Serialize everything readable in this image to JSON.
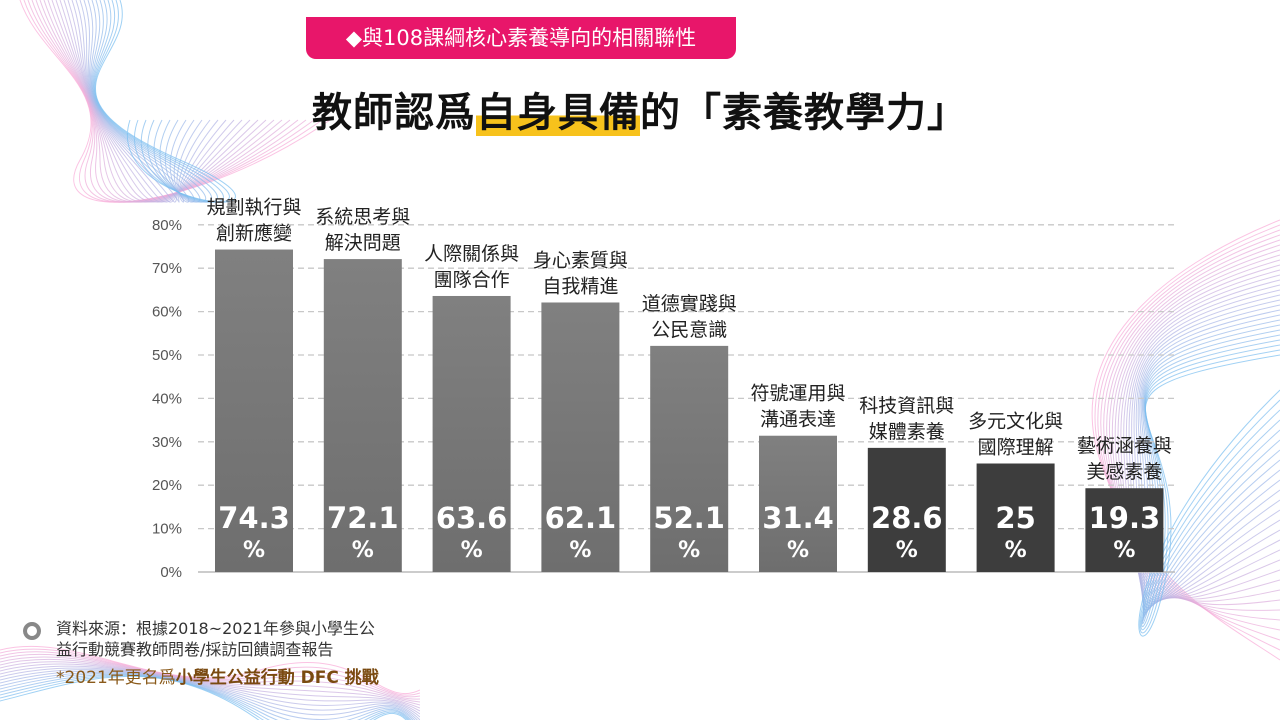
{
  "header": {
    "tag": "◆與108課綱核心素養導向的相關聯性",
    "title_pre": "教師認爲",
    "title_highlight": "自身具備",
    "title_post": "的「素養教學力」"
  },
  "footer": {
    "source_line1": "資料來源：根據2018~2021年參與小學生公",
    "source_line2": "益行動競賽教師問卷/採訪回饋調查報告",
    "note_prefix": "*2021年更名爲",
    "note_bold": "小學生公益行動 DFC 挑戰"
  },
  "colors": {
    "accent": "#e8166a",
    "highlight": "#f7c21c",
    "bar_light": "#7d7d7d",
    "bar_dark": "#3d3d3d"
  },
  "chart_data": {
    "type": "bar",
    "categories": [
      [
        "規劃執行與",
        "創新應變"
      ],
      [
        "系統思考與",
        "解決問題"
      ],
      [
        "人際關係與",
        "團隊合作"
      ],
      [
        "身心素質與",
        "自我精進"
      ],
      [
        "道德實踐與",
        "公民意識"
      ],
      [
        "符號運用與",
        "溝通表達"
      ],
      [
        "科技資訊與",
        "媒體素養"
      ],
      [
        "多元文化與",
        "國際理解"
      ],
      [
        "藝術涵養與",
        "美感素養"
      ]
    ],
    "values": [
      74.3,
      72.1,
      63.6,
      62.1,
      52.1,
      31.4,
      28.6,
      25,
      19.3
    ],
    "value_labels": [
      "74.3",
      "72.1",
      "63.6",
      "62.1",
      "52.1",
      "31.4",
      "28.6",
      "25",
      "19.3"
    ],
    "value_suffix": "%",
    "dark_bars": [
      6,
      7,
      8
    ],
    "yticks": [
      "0%",
      "10%",
      "20%",
      "30%",
      "40%",
      "50%",
      "60%",
      "70%",
      "80%"
    ],
    "ylim": [
      0,
      80
    ],
    "grid": true
  }
}
